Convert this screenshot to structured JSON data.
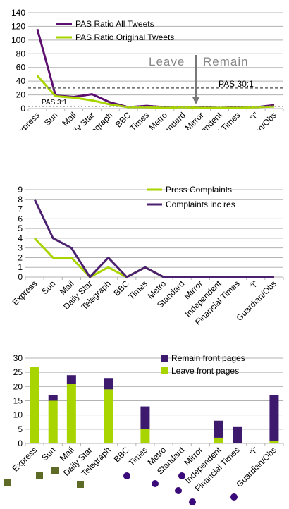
{
  "chart_data": [
    {
      "type": "line",
      "categories": [
        "Express",
        "Sun",
        "Mail",
        "Daily Star",
        "Telegraph",
        "BBC",
        "Times",
        "Metro",
        "Standard",
        "Mirror",
        "Independent",
        "Financial Times",
        "“i”",
        "Guardian/Obs"
      ],
      "ylim": [
        0,
        140
      ],
      "yticks": [
        0,
        20,
        40,
        60,
        80,
        100,
        120,
        140
      ],
      "grid": true,
      "legend_position": "top-left",
      "series": [
        {
          "name": "PAS Ratio All Tweets",
          "color": "#5c0f6e",
          "values": [
            116,
            19,
            17,
            21,
            9,
            2,
            4,
            2,
            2,
            2,
            1,
            2,
            2,
            5
          ]
        },
        {
          "name": "PAS Ratio Original Tweets",
          "color": "#a8d400",
          "values": [
            48,
            18,
            16,
            12,
            6,
            2,
            2,
            1,
            2,
            1,
            1,
            1,
            2,
            3
          ]
        }
      ],
      "reference_lines": [
        {
          "label": "PAS 30:1",
          "value": 30
        },
        {
          "label": "PAS 3:1",
          "value": 3
        }
      ],
      "annotations": {
        "left": "Leave",
        "right": "Remain"
      }
    },
    {
      "type": "line",
      "categories": [
        "Express",
        "Sun",
        "Mail",
        "Daily Star",
        "Telegraph",
        "BBC",
        "Times",
        "Metro",
        "Standard",
        "Mirror",
        "Independent",
        "Financial Times",
        "“i”",
        "Guardian/Obs"
      ],
      "ylim": [
        0,
        9
      ],
      "yticks": [
        0,
        1,
        2,
        3,
        4,
        5,
        6,
        7,
        8,
        9
      ],
      "grid": true,
      "legend_position": "top-right",
      "series": [
        {
          "name": "Press Complaints",
          "color": "#a8d400",
          "values": [
            4,
            2,
            2,
            0,
            1,
            0,
            1,
            0,
            0,
            0,
            0,
            0,
            0,
            0
          ]
        },
        {
          "name": "Complaints inc res",
          "color": "#4b2170",
          "values": [
            8,
            4,
            3,
            0,
            2,
            0,
            1,
            0,
            0,
            0,
            0,
            0,
            0,
            0
          ]
        }
      ]
    },
    {
      "type": "bar",
      "stacked": true,
      "categories": [
        "Express",
        "Sun",
        "Mail",
        "Daily Star",
        "Telegraph",
        "BBC",
        "Times",
        "Metro",
        "Standard",
        "Mirror",
        "Independent",
        "Financial Times",
        "“i”",
        "Guardian/Obs"
      ],
      "ylim": [
        0,
        30
      ],
      "yticks": [
        0,
        5,
        10,
        15,
        20,
        25,
        30
      ],
      "grid": true,
      "legend_position": "top-right",
      "series": [
        {
          "name": "Leave front pages",
          "color": "#a8d400",
          "values": [
            27,
            15,
            21,
            0,
            19,
            0,
            5,
            0,
            0,
            0,
            2,
            0,
            0,
            1
          ]
        },
        {
          "name": "Remain front pages",
          "color": "#3d1a6e",
          "values": [
            0,
            2,
            3,
            0,
            4,
            0,
            8,
            0,
            0,
            0,
            6,
            6,
            0,
            16
          ]
        }
      ],
      "markers": [
        {
          "shape": "square",
          "color": "#5d6b26",
          "categories": [
            "Express",
            "Sun",
            "Mail",
            "Daily Star"
          ]
        },
        {
          "shape": "circle",
          "color": "#3b0a7a",
          "categories": [
            "Times",
            "Metro",
            "Standard",
            "Mirror",
            "Independent",
            "Guardian/Obs"
          ]
        }
      ]
    }
  ]
}
